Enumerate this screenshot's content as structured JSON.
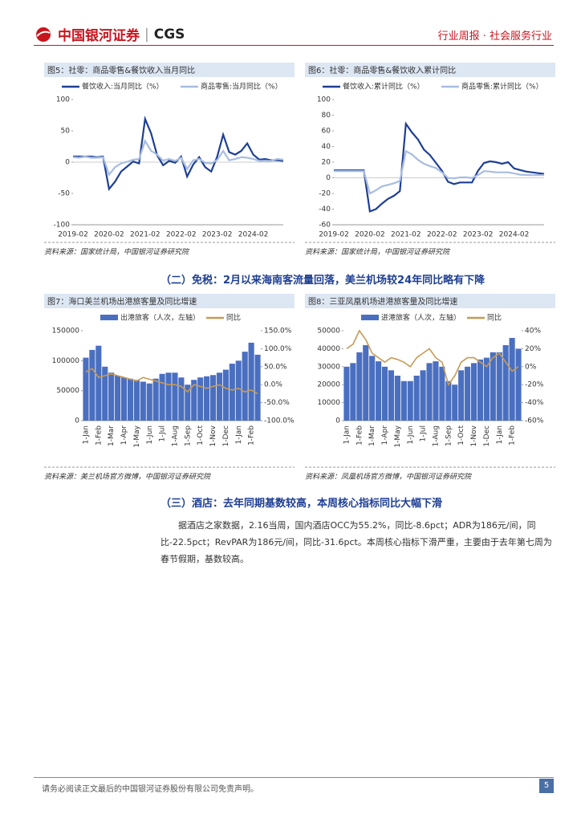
{
  "header": {
    "logo": "中国银河证券",
    "logo_en": "CGS",
    "report_type": "行业周报 · 社会服务行业"
  },
  "sections": [
    {
      "heading": "（二）免税：2月以来海南客流量回落，美兰机场较24年同比略有下降"
    },
    {
      "heading": "（三）酒店：去年同期基数较高，本周核心指标同比大幅下滑",
      "paragraph": "据酒店之家数据，2.16当周，国内酒店OCC为55.2%，同比-8.6pct；ADR为186元/间，同比-22.5pct；RevPAR为186元/间，同比-31.6pct。本周核心指标下滑严重，主要由于去年第七周为春节假期，基数较高。"
    }
  ],
  "chart_data": [
    {
      "type": "line",
      "title": "图5：社零：商品零售&餐饮收入当月同比",
      "source": "资料来源：国家统计局，中国银河证券研究院",
      "categories": [
        "2019-02",
        null,
        null,
        null,
        null,
        null,
        "2020-02",
        null,
        null,
        null,
        null,
        null,
        "2021-02",
        null,
        null,
        null,
        null,
        null,
        "2022-02",
        null,
        null,
        null,
        null,
        null,
        "2023-02",
        null,
        null,
        null,
        null,
        null,
        "2024-02",
        null,
        null,
        null,
        null,
        null
      ],
      "ylim": [
        -100,
        100
      ],
      "yticks": [
        -100,
        -50,
        0,
        50,
        100
      ],
      "series": [
        {
          "name": "餐饮收入:当月同比（%）",
          "color": "#1f3f95",
          "values": [
            9,
            9,
            9,
            9,
            8,
            9,
            -43,
            -31,
            -15,
            -7,
            1,
            -2,
            69,
            46,
            11,
            -5,
            2,
            -1,
            9,
            -23,
            -4,
            8,
            -8,
            -15,
            9,
            44,
            16,
            12,
            18,
            30,
            12,
            4,
            5,
            3,
            3,
            2
          ]
        },
        {
          "name": "商品零售:当月同比（%）",
          "color": "#a8bde0",
          "values": [
            8,
            7,
            9,
            7,
            7,
            8,
            -20,
            -8,
            -2,
            0.5,
            4,
            5,
            34,
            18,
            12,
            2.5,
            5,
            2,
            7,
            -11,
            3,
            5,
            -1,
            -2,
            3.5,
            18,
            3,
            5,
            8,
            7,
            5,
            2,
            2,
            2,
            5,
            4
          ]
        }
      ]
    },
    {
      "type": "line",
      "title": "图6：社零：商品零售&餐饮收入累计同比",
      "source": "资料来源：国家统计局，中国银河证券研究院",
      "categories": [
        "2019-02",
        null,
        null,
        null,
        null,
        null,
        "2020-02",
        null,
        null,
        null,
        null,
        null,
        "2021-02",
        null,
        null,
        null,
        null,
        null,
        "2022-02",
        null,
        null,
        null,
        null,
        null,
        "2023-02",
        null,
        null,
        null,
        null,
        null,
        "2024-02",
        null,
        null,
        null,
        null,
        null
      ],
      "ylim": [
        -60,
        100
      ],
      "yticks": [
        -60,
        -40,
        -20,
        0,
        20,
        40,
        60,
        80,
        100
      ],
      "series": [
        {
          "name": "餐饮收入:累计同比（%）",
          "color": "#1f3f95",
          "values": [
            9.5,
            9.5,
            9.5,
            9.5,
            9.5,
            9.5,
            -43,
            -40,
            -33,
            -27,
            -23,
            -17,
            69,
            58,
            49,
            36,
            29,
            19,
            9,
            -5,
            -8,
            -6,
            -6,
            -6,
            9,
            19,
            21,
            20,
            18,
            20,
            12,
            10,
            8,
            7,
            6,
            5
          ]
        },
        {
          "name": "商品零售:累计同比（%）",
          "color": "#a8bde0",
          "values": [
            8.5,
            8.5,
            8.5,
            8.5,
            8.5,
            8.5,
            -20,
            -16,
            -11,
            -9,
            -7,
            -4,
            34,
            30,
            23,
            18,
            15,
            12.5,
            7,
            -0.2,
            -0.7,
            0.5,
            0.6,
            -0.2,
            3.5,
            8.5,
            8,
            7,
            7,
            7,
            5.5,
            4,
            3.7,
            3.4,
            3.5,
            3.5
          ]
        }
      ]
    },
    {
      "type": "combo",
      "title": "图7：海口美兰机场出港旅客量及同比增速",
      "source": "资料来源：美兰机场官方微博，中国银河证券研究院",
      "categories": [
        "1-Jan",
        null,
        "1-Feb",
        null,
        "1-Mar",
        null,
        "1-Apr",
        null,
        "1-May",
        null,
        "1-Jun",
        null,
        "1-Jul",
        null,
        "1-Aug",
        null,
        "1-Sep",
        null,
        "1-Oct",
        null,
        "1-Nov",
        null,
        "1-Dec",
        null,
        "1-Jan",
        null,
        "1-Feb",
        null
      ],
      "ylim": [
        0,
        150000
      ],
      "yticks": [
        0,
        50000,
        100000,
        150000
      ],
      "y2lim": [
        -100,
        150
      ],
      "y2ticks": [
        {
          "value": -100,
          "label": "-100.0%"
        },
        {
          "value": -50,
          "label": "-50.0%"
        },
        {
          "value": 0,
          "label": "0.0%"
        },
        {
          "value": 50,
          "label": "50.0%"
        },
        {
          "value": 100,
          "label": "100.0%"
        },
        {
          "value": 150,
          "label": "150.0%"
        }
      ],
      "series": [
        {
          "name": "出港旅客（人次，左轴）",
          "kind": "bar",
          "color": "#4a6fc0",
          "values": [
            105000,
            118000,
            125000,
            90000,
            80000,
            75000,
            72000,
            70000,
            68000,
            65000,
            62000,
            70000,
            78000,
            80000,
            80000,
            72000,
            60000,
            68000,
            72000,
            74000,
            76000,
            80000,
            85000,
            95000,
            100000,
            115000,
            130000,
            110000
          ]
        },
        {
          "name": "同比",
          "kind": "line",
          "axis": "y2",
          "color": "#c79a55",
          "values": [
            35,
            45,
            20,
            25,
            30,
            25,
            20,
            15,
            10,
            20,
            15,
            10,
            5,
            0,
            0,
            -5,
            -20,
            0,
            -5,
            -10,
            -5,
            0,
            -10,
            -15,
            -10,
            -20,
            -15,
            -25
          ]
        }
      ]
    },
    {
      "type": "combo",
      "title": "图8：三亚凤凰机场进港旅客量及同比增速",
      "source": "资料来源：凤凰机场官方微博，中国银河证券研究院",
      "categories": [
        "1-Jan",
        null,
        "1-Feb",
        null,
        "1-Mar",
        null,
        "1-Apr",
        null,
        "1-May",
        null,
        "1-Jun",
        null,
        "1-Jul",
        null,
        "1-Aug",
        null,
        "1-Sep",
        null,
        "1-Oct",
        null,
        "1-Nov",
        null,
        "1-Dec",
        null,
        "1-Jan",
        null,
        "1-Feb",
        null
      ],
      "ylim": [
        0,
        50000
      ],
      "yticks": [
        0,
        10000,
        20000,
        30000,
        40000,
        50000
      ],
      "y2lim": [
        -60,
        40
      ],
      "y2ticks": [
        {
          "value": -60,
          "label": "-60%"
        },
        {
          "value": -40,
          "label": "-40%"
        },
        {
          "value": -20,
          "label": "-20%"
        },
        {
          "value": 0,
          "label": "0%"
        },
        {
          "value": 20,
          "label": "20%"
        },
        {
          "value": 40,
          "label": "40%"
        }
      ],
      "series": [
        {
          "name": "进港旅客（人次，左轴）",
          "kind": "bar",
          "color": "#4a6fc0",
          "values": [
            30000,
            32000,
            38000,
            42000,
            36000,
            33000,
            30000,
            28000,
            25000,
            22000,
            22000,
            25000,
            28000,
            32000,
            33000,
            30000,
            22000,
            20000,
            28000,
            30000,
            32000,
            34000,
            35000,
            38000,
            38000,
            42000,
            46000,
            40000
          ]
        },
        {
          "name": "同比",
          "kind": "line",
          "axis": "y2",
          "color": "#c79a55",
          "values": [
            20,
            25,
            40,
            30,
            15,
            10,
            5,
            10,
            8,
            5,
            0,
            10,
            15,
            20,
            10,
            5,
            -20,
            -10,
            5,
            10,
            10,
            5,
            0,
            10,
            15,
            5,
            -5,
            0
          ]
        }
      ]
    }
  ],
  "footer": {
    "disclaimer": "请务必阅读正文最后的中国银河证券股份有限公司免责声明。",
    "page": 5
  }
}
